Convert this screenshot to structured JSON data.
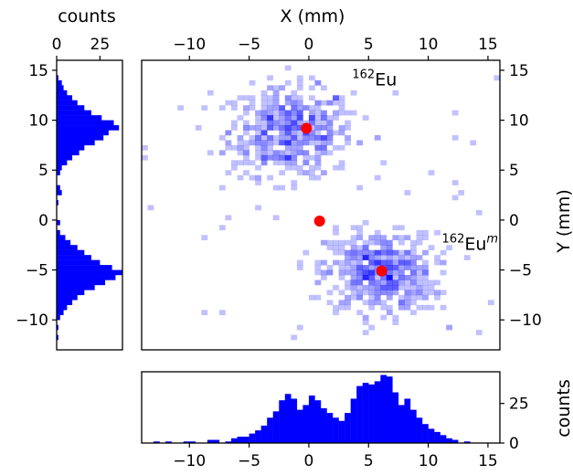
{
  "chart_data": {
    "type": "heatmap",
    "main": {
      "xlabel": "X (mm)",
      "ylabel": "Y (mm)",
      "xlim": [
        -14,
        16
      ],
      "ylim": [
        -13,
        16
      ],
      "xticks": [
        -10,
        -5,
        0,
        5,
        10,
        15
      ],
      "yticks": [
        15,
        10,
        5,
        0,
        -5,
        -10
      ],
      "bin_size_mm": 0.5,
      "color": "#0000ff",
      "clusters": [
        {
          "label_main": "Eu",
          "label_sup": "162",
          "label_suffix": "",
          "cx": -1.5,
          "cy": 8.8,
          "sx": 2.6,
          "sy": 2.2,
          "n": 520
        },
        {
          "label_main": "Eu",
          "label_sup": "162",
          "label_suffix": "m",
          "cx": 5.9,
          "cy": -5.2,
          "sx": 2.3,
          "sy": 2.0,
          "n": 520
        }
      ],
      "annotations": [
        {
          "sup": "162",
          "text": "Eu",
          "suffix": "",
          "x": 5.5,
          "y": 13.5
        },
        {
          "sup": "162",
          "text": "Eu",
          "suffix": "m",
          "x": 13.5,
          "y": -3.0
        }
      ],
      "markers": [
        {
          "x": -0.2,
          "y": 9.2
        },
        {
          "x": 0.9,
          "y": -0.1
        },
        {
          "x": 6.1,
          "y": -5.1
        }
      ],
      "marker_color": "#ff0000"
    },
    "left_hist": {
      "title": "counts",
      "xticks": [
        0,
        25
      ],
      "xlim": [
        0,
        38
      ],
      "y_bins": [
        {
          "y": 14.0,
          "v": 1
        },
        {
          "y": 13.5,
          "v": 3
        },
        {
          "y": 13.0,
          "v": 4
        },
        {
          "y": 12.5,
          "v": 6
        },
        {
          "y": 12.0,
          "v": 9
        },
        {
          "y": 11.5,
          "v": 12
        },
        {
          "y": 11.0,
          "v": 16
        },
        {
          "y": 10.5,
          "v": 20
        },
        {
          "y": 10.0,
          "v": 26
        },
        {
          "y": 9.5,
          "v": 33
        },
        {
          "y": 9.0,
          "v": 36
        },
        {
          "y": 8.5,
          "v": 30
        },
        {
          "y": 8.0,
          "v": 27
        },
        {
          "y": 7.5,
          "v": 22
        },
        {
          "y": 7.0,
          "v": 16
        },
        {
          "y": 6.5,
          "v": 13
        },
        {
          "y": 6.0,
          "v": 9
        },
        {
          "y": 5.5,
          "v": 6
        },
        {
          "y": 5.0,
          "v": 3
        },
        {
          "y": 4.5,
          "v": 2
        },
        {
          "y": 3.0,
          "v": 2
        },
        {
          "y": 2.5,
          "v": 3
        },
        {
          "y": 1.5,
          "v": 1
        },
        {
          "y": -0.5,
          "v": 2
        },
        {
          "y": -1.5,
          "v": 2
        },
        {
          "y": -2.0,
          "v": 5
        },
        {
          "y": -2.5,
          "v": 8
        },
        {
          "y": -3.0,
          "v": 12
        },
        {
          "y": -3.5,
          "v": 16
        },
        {
          "y": -4.0,
          "v": 20
        },
        {
          "y": -4.5,
          "v": 25
        },
        {
          "y": -5.0,
          "v": 32
        },
        {
          "y": -5.5,
          "v": 38
        },
        {
          "y": -6.0,
          "v": 34
        },
        {
          "y": -6.5,
          "v": 28
        },
        {
          "y": -7.0,
          "v": 22
        },
        {
          "y": -7.5,
          "v": 16
        },
        {
          "y": -8.0,
          "v": 12
        },
        {
          "y": -8.5,
          "v": 9
        },
        {
          "y": -9.0,
          "v": 6
        },
        {
          "y": -9.5,
          "v": 4
        },
        {
          "y": -10.0,
          "v": 2
        },
        {
          "y": -11.0,
          "v": 1
        },
        {
          "y": -12.0,
          "v": 1
        }
      ]
    },
    "bottom_hist": {
      "ylabel": "counts",
      "yticks": [
        0,
        25
      ],
      "ylim": [
        0,
        45
      ],
      "x_bins": [
        {
          "x": -13.0,
          "v": 1
        },
        {
          "x": -12.0,
          "v": 1
        },
        {
          "x": -10.5,
          "v": 1
        },
        {
          "x": -10.0,
          "v": 1
        },
        {
          "x": -8.5,
          "v": 2
        },
        {
          "x": -8.0,
          "v": 2
        },
        {
          "x": -7.0,
          "v": 1
        },
        {
          "x": -6.5,
          "v": 3
        },
        {
          "x": -6.0,
          "v": 4
        },
        {
          "x": -5.5,
          "v": 4
        },
        {
          "x": -5.0,
          "v": 6
        },
        {
          "x": -4.5,
          "v": 8
        },
        {
          "x": -4.0,
          "v": 11
        },
        {
          "x": -3.5,
          "v": 16
        },
        {
          "x": -3.0,
          "v": 20
        },
        {
          "x": -2.5,
          "v": 27
        },
        {
          "x": -2.0,
          "v": 31
        },
        {
          "x": -1.5,
          "v": 28
        },
        {
          "x": -1.0,
          "v": 21
        },
        {
          "x": -0.5,
          "v": 24
        },
        {
          "x": 0.0,
          "v": 30
        },
        {
          "x": 0.5,
          "v": 27
        },
        {
          "x": 1.0,
          "v": 22
        },
        {
          "x": 1.5,
          "v": 19
        },
        {
          "x": 2.0,
          "v": 16
        },
        {
          "x": 2.5,
          "v": 14
        },
        {
          "x": 3.0,
          "v": 19
        },
        {
          "x": 3.5,
          "v": 28
        },
        {
          "x": 4.0,
          "v": 36
        },
        {
          "x": 4.5,
          "v": 38
        },
        {
          "x": 5.0,
          "v": 37
        },
        {
          "x": 5.5,
          "v": 39
        },
        {
          "x": 6.0,
          "v": 43
        },
        {
          "x": 6.5,
          "v": 42
        },
        {
          "x": 7.0,
          "v": 32
        },
        {
          "x": 7.5,
          "v": 24
        },
        {
          "x": 8.0,
          "v": 28
        },
        {
          "x": 8.5,
          "v": 21
        },
        {
          "x": 9.0,
          "v": 16
        },
        {
          "x": 9.5,
          "v": 12
        },
        {
          "x": 10.0,
          "v": 9
        },
        {
          "x": 10.5,
          "v": 7
        },
        {
          "x": 11.0,
          "v": 5
        },
        {
          "x": 11.5,
          "v": 3
        },
        {
          "x": 12.0,
          "v": 2
        },
        {
          "x": 13.0,
          "v": 1
        }
      ]
    }
  }
}
